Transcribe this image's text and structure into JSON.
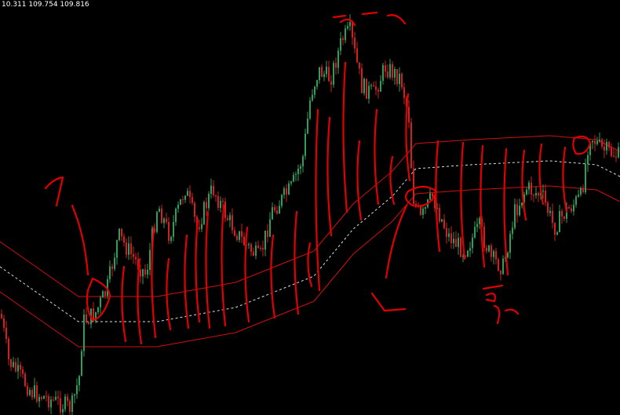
{
  "header": {
    "text": "10.311 109.754 109.816"
  }
}
